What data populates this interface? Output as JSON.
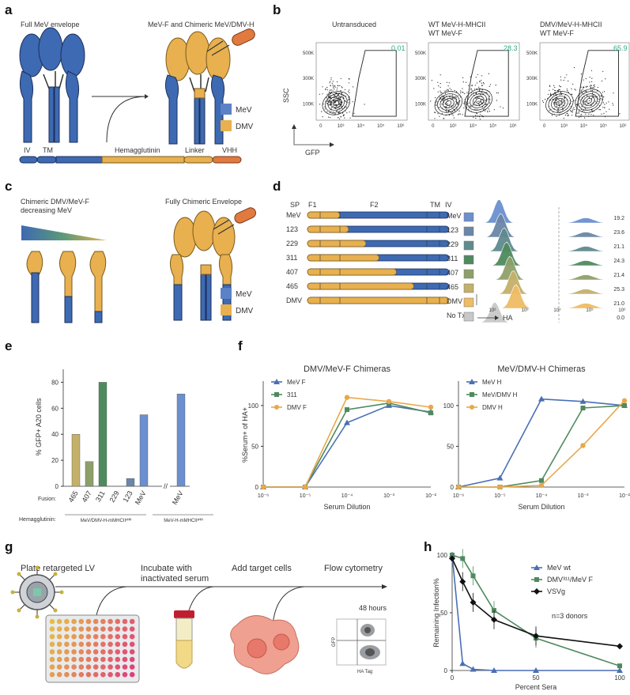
{
  "panels": {
    "a": "a",
    "b": "b",
    "c": "c",
    "d": "d",
    "e": "e",
    "f": "f",
    "g": "g",
    "h": "h"
  },
  "colors": {
    "mev": "#4a6fb5",
    "dmv": "#e8b04e",
    "vhh": "#e07a3e",
    "fusion_311": "#4f8a5e",
    "vsvg": "#111111"
  },
  "panel_a": {
    "title_left": "Full MeV envelope",
    "title_right": "MeV-F and Chimeric MeV/DMV-H",
    "legend": [
      "MeV",
      "DMV"
    ],
    "domains": [
      "IV",
      "TM",
      "Hemagglutinin",
      "Linker",
      "VHH"
    ]
  },
  "panel_b": {
    "plots": [
      {
        "title1": "Untransduced",
        "title2": "",
        "gate": "0.01"
      },
      {
        "title1": "WT MeV-H-MHCII",
        "title2": "WT MeV-F",
        "gate": "28.3"
      },
      {
        "title1": "DMV/MeV-H-MHCII",
        "title2": "WT MeV-F",
        "gate": "65.9"
      }
    ],
    "yticks": [
      "100K",
      "300K",
      "500K"
    ],
    "xticks": [
      "0",
      "10³",
      "10⁴",
      "10⁵",
      "10⁶"
    ],
    "ylabel": "SSC",
    "xlabel": "GFP"
  },
  "panel_c": {
    "title_left1": "Chimeric DMV/MeV-F",
    "title_left2": "decreasing MeV",
    "title_right": "Fully Chimeric Envelope",
    "legend": [
      "MeV",
      "DMV"
    ]
  },
  "panel_d": {
    "header": [
      "SP",
      "F1",
      "F2",
      "TM",
      "IV"
    ],
    "rows": [
      {
        "label": "MeV",
        "frac": 0.0,
        "mfi": "19.2",
        "color": "#6b8fcf"
      },
      {
        "label": "123",
        "frac": 0.1,
        "mfi": "23.6",
        "color": "#6a86a8"
      },
      {
        "label": "229",
        "frac": 0.3,
        "mfi": "21.1",
        "color": "#5f8a8e"
      },
      {
        "label": "311",
        "frac": 0.45,
        "mfi": "24.3",
        "color": "#4f8a5e"
      },
      {
        "label": "407",
        "frac": 0.65,
        "mfi": "21.4",
        "color": "#8ea06a"
      },
      {
        "label": "465",
        "frac": 0.85,
        "mfi": "25.3",
        "color": "#c4b06a"
      },
      {
        "label": "DMV",
        "frac": 1.0,
        "mfi": "21.0",
        "color": "#eebc63"
      },
      {
        "label": "No Tx",
        "frac": -1,
        "mfi": "0.0",
        "color": "#c8c8c8"
      }
    ],
    "xticks": [
      "10²",
      "10³",
      "10⁴",
      "10⁵",
      "10⁶"
    ],
    "xlabel": "HA"
  },
  "panel_e": {
    "ylabel": "% GFP+ A20 cells",
    "yticks": [
      "0",
      "20",
      "40",
      "60",
      "80"
    ],
    "fusion_label": "Fusion:",
    "hemagglutinin_label": "Hemagglutinin:",
    "group1": "MeV/DMV-H-mMHCIIᵛᴴᴴ",
    "group2": "MeV-H-mMHCIIᵛᴴᴴ"
  },
  "panel_f": {
    "left_title": "DMV/MeV-F Chimeras",
    "right_title": "MeV/DMV-H Chimeras",
    "ylabel": "%Serum+ of HA+",
    "xlabel": "Serum Dilution",
    "yticks": [
      "0",
      "50",
      "100"
    ],
    "xticks": [
      "10⁻⁶",
      "10⁻⁵",
      "10⁻⁴",
      "10⁻³",
      "10⁻²"
    ]
  },
  "panel_g": {
    "steps": [
      "Plate retargeted LV",
      "Incubate with",
      "inactivated serum",
      "Add target cells",
      "Flow cytometry"
    ],
    "time": "48 hours",
    "ylabel": "GFP",
    "xlabel": "HA Tag"
  },
  "panel_h": {
    "ylabel": "Remaining Infection%",
    "xlabel": "Percent Sera",
    "yticks": [
      "0",
      "50",
      "100"
    ],
    "xticks": [
      "0",
      "50",
      "100"
    ],
    "note": "n=3 donors",
    "legend": [
      "MeV wt",
      "DMV³¹¹/MeV F",
      "VSVg"
    ]
  },
  "chart_data": [
    {
      "type": "bar",
      "ylabel": "% GFP+ A20 cells",
      "ylim": [
        0,
        90
      ],
      "categories": [
        "465",
        "407",
        "311",
        "229",
        "123",
        "MeV",
        "MeV"
      ],
      "values": [
        40,
        19,
        80,
        0,
        6,
        55,
        71
      ],
      "colors": [
        "#c4b06a",
        "#8ea06a",
        "#4f8a5e",
        "#5f8a8e",
        "#6a86a8",
        "#6b8fcf",
        "#6b8fcf"
      ]
    },
    {
      "type": "line",
      "title": "DMV/MeV-F Chimeras",
      "xlabel": "Serum Dilution",
      "ylabel": "%Serum+ of HA+",
      "x": [
        -6,
        -5,
        -4,
        -3,
        -2
      ],
      "ylim": [
        0,
        130
      ],
      "series": [
        {
          "name": "MeV F",
          "color": "#4a6fb5",
          "marker": "triangle",
          "values": [
            0,
            0,
            79,
            100,
            92
          ]
        },
        {
          "name": "311",
          "color": "#4f8a5e",
          "marker": "square",
          "values": [
            0,
            0,
            95,
            103,
            91
          ]
        },
        {
          "name": "DMV F",
          "color": "#e8a84a",
          "marker": "circle",
          "values": [
            0,
            0,
            110,
            105,
            98
          ]
        }
      ]
    },
    {
      "type": "line",
      "title": "MeV/DMV-H Chimeras",
      "xlabel": "Serum Dilution",
      "ylabel": "%Serum+ of HA+",
      "x": [
        -6,
        -5,
        -4,
        -3,
        -2
      ],
      "ylim": [
        0,
        130
      ],
      "series": [
        {
          "name": "MeV H",
          "color": "#4a6fb5",
          "marker": "triangle",
          "values": [
            0,
            11,
            108,
            105,
            100
          ]
        },
        {
          "name": "MeV/DMV H",
          "color": "#4f8a5e",
          "marker": "square",
          "values": [
            0,
            0,
            8,
            97,
            100
          ]
        },
        {
          "name": "DMV H",
          "color": "#e8a84a",
          "marker": "circle",
          "values": [
            0,
            0,
            2,
            51,
            106
          ]
        }
      ]
    },
    {
      "type": "line",
      "xlabel": "Percent Sera",
      "ylabel": "Remaining Infection%",
      "xlim": [
        0,
        100
      ],
      "ylim": [
        0,
        100
      ],
      "series": [
        {
          "name": "MeV wt",
          "color": "#4a6fb5",
          "marker": "triangle",
          "x": [
            0,
            6.25,
            12.5,
            25,
            50,
            100
          ],
          "values": [
            100,
            6,
            1,
            0,
            0,
            0
          ]
        },
        {
          "name": "DMV³¹¹/MeV F",
          "color": "#4f8a5e",
          "marker": "square",
          "x": [
            0,
            6.25,
            12.5,
            25,
            50,
            100
          ],
          "values": [
            100,
            97,
            82,
            52,
            28,
            4
          ]
        },
        {
          "name": "VSVg",
          "color": "#111111",
          "marker": "diamond",
          "x": [
            0,
            6.25,
            12.5,
            25,
            50,
            100
          ],
          "values": [
            97,
            77,
            59,
            44,
            30,
            21
          ]
        }
      ]
    }
  ]
}
